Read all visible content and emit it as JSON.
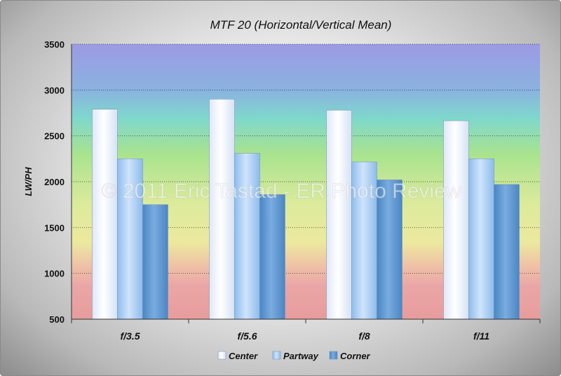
{
  "chart_data": {
    "type": "bar",
    "title": "MTF 20 (Horizontal/Vertical Mean)",
    "ylabel": "LW/PH",
    "xlabel": "",
    "ylim": [
      500,
      3500
    ],
    "yticks": [
      "500",
      "1000",
      "1500",
      "2000",
      "2500",
      "3000",
      "3500"
    ],
    "categories": [
      "f/3.5",
      "f/5.6",
      "f/8",
      "f/11"
    ],
    "series": [
      {
        "name": "Center",
        "values": [
          2790,
          2900,
          2780,
          2665
        ],
        "color": "#eef2fb"
      },
      {
        "name": "Partway",
        "values": [
          2250,
          2310,
          2215,
          2250
        ],
        "color": "#a9cdf3"
      },
      {
        "name": "Corner",
        "values": [
          1750,
          1860,
          2020,
          1970
        ],
        "color": "#5e97d0"
      }
    ],
    "legend_position": "bottom",
    "grid": true,
    "background_bands": [
      "#9c9ae4",
      "#7fd8cc",
      "#a9e38e",
      "#ece99e",
      "#eaa6a6"
    ],
    "watermark": "© 2011 Eric Tastad - ER Photo Review"
  }
}
